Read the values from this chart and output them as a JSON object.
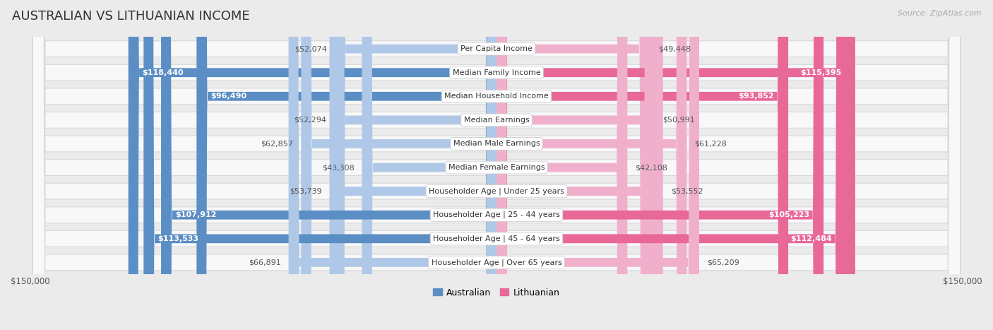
{
  "title": "AUSTRALIAN VS LITHUANIAN INCOME",
  "source": "Source: ZipAtlas.com",
  "categories": [
    "Per Capita Income",
    "Median Family Income",
    "Median Household Income",
    "Median Earnings",
    "Median Male Earnings",
    "Median Female Earnings",
    "Householder Age | Under 25 years",
    "Householder Age | 25 - 44 years",
    "Householder Age | 45 - 64 years",
    "Householder Age | Over 65 years"
  ],
  "australian_values": [
    52074,
    118440,
    96490,
    52294,
    62857,
    43308,
    53739,
    107912,
    113533,
    66891
  ],
  "lithuanian_values": [
    49448,
    115395,
    93852,
    50991,
    61228,
    42108,
    53552,
    105223,
    112484,
    65209
  ],
  "australian_labels": [
    "$52,074",
    "$118,440",
    "$96,490",
    "$52,294",
    "$62,857",
    "$43,308",
    "$53,739",
    "$107,912",
    "$113,533",
    "$66,891"
  ],
  "lithuanian_labels": [
    "$49,448",
    "$115,395",
    "$93,852",
    "$50,991",
    "$61,228",
    "$42,108",
    "$53,552",
    "$105,223",
    "$112,484",
    "$65,209"
  ],
  "max_value": 150000,
  "australian_color_dark": "#5b8ec4",
  "australian_color_light": "#b0c8e8",
  "lithuanian_color_dark": "#e86898",
  "lithuanian_color_light": "#f0b0cc",
  "background_color": "#ebebeb",
  "row_bg_color": "#f8f8f8",
  "label_threshold": 80000,
  "legend_australian": "Australian",
  "legend_lithuanian": "Lithuanian",
  "title_fontsize": 13,
  "label_fontsize": 8,
  "category_fontsize": 8
}
